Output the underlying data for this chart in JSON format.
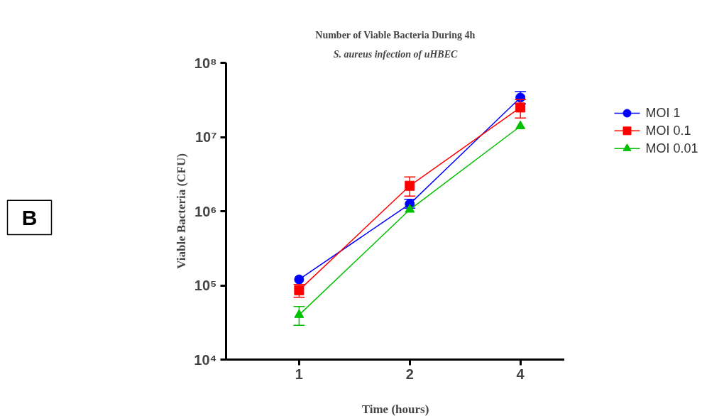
{
  "chart_data": {
    "type": "line",
    "title": "Number of Viable Bacteria During 4h",
    "subtitle": "S. aureus infection of uHBEC",
    "xlabel": "Time (hours)",
    "ylabel": "Viable Bacteria (CFU)",
    "categories": [
      "1",
      "2",
      "4"
    ],
    "series": [
      {
        "name": "MOI 1",
        "color": "#0000ff",
        "marker": "circle",
        "values": [
          120000,
          1250000,
          34000000
        ],
        "errors": [
          null,
          [
            1100000,
            1450000
          ],
          [
            28000000,
            41000000
          ]
        ]
      },
      {
        "name": "MOI 0.1",
        "color": "#ff0000",
        "marker": "square",
        "values": [
          86000,
          2200000,
          25000000
        ],
        "errors": [
          [
            69000,
            103000
          ],
          [
            1600000,
            2900000
          ],
          [
            18000000,
            32000000
          ]
        ]
      },
      {
        "name": "MOI 0.01",
        "color": "#00c000",
        "marker": "triangle",
        "values": [
          40000,
          1050000,
          14000000
        ],
        "errors": [
          [
            29000,
            52000
          ],
          null,
          null
        ]
      }
    ],
    "log": "y",
    "ylim": [
      10000,
      100000000
    ],
    "yticks": [
      {
        "value": 10000,
        "label": "10⁴"
      },
      {
        "value": 100000,
        "label": "10⁵"
      },
      {
        "value": 1000000,
        "label": "10⁶"
      },
      {
        "value": 10000000,
        "label": "10⁷"
      },
      {
        "value": 100000000,
        "label": "10⁸"
      }
    ],
    "grid": false,
    "legend": "top right",
    "annotations": [
      "B"
    ]
  }
}
